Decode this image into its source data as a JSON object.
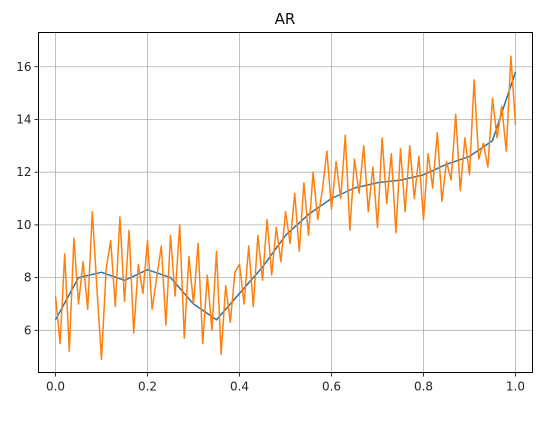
{
  "chart_data": {
    "type": "line",
    "title": "AR",
    "xlabel": "",
    "ylabel": "",
    "xlim": [
      -0.037,
      1.037
    ],
    "ylim": [
      4.4,
      17.3
    ],
    "xticks": [
      0.0,
      0.2,
      0.4,
      0.6,
      0.8,
      1.0
    ],
    "xtick_labels": [
      "0.0",
      "0.2",
      "0.4",
      "0.6",
      "0.8",
      "1.0"
    ],
    "yticks": [
      6,
      8,
      10,
      12,
      14,
      16
    ],
    "ytick_labels": [
      "6",
      "8",
      "10",
      "12",
      "14",
      "16"
    ],
    "grid": true,
    "legend": "none",
    "series": [
      {
        "color": "#1f77b4",
        "x": [
          0.0,
          0.05,
          0.1,
          0.15,
          0.2,
          0.25,
          0.3,
          0.35,
          0.4,
          0.45,
          0.5,
          0.55,
          0.6,
          0.65,
          0.7,
          0.75,
          0.8,
          0.85,
          0.9,
          0.95,
          1.0
        ],
        "y": [
          6.4,
          8.0,
          8.2,
          7.9,
          8.3,
          8.0,
          7.0,
          6.4,
          7.4,
          8.4,
          9.6,
          10.4,
          11.0,
          11.4,
          11.6,
          11.7,
          11.9,
          12.3,
          12.6,
          13.2,
          15.8
        ]
      },
      {
        "color": "#ff7f0e",
        "x": [
          0.0,
          0.01,
          0.02,
          0.03,
          0.04,
          0.05,
          0.06,
          0.07,
          0.08,
          0.09,
          0.1,
          0.11,
          0.12,
          0.13,
          0.14,
          0.15,
          0.16,
          0.17,
          0.18,
          0.19,
          0.2,
          0.21,
          0.22,
          0.23,
          0.24,
          0.25,
          0.26,
          0.27,
          0.28,
          0.29,
          0.3,
          0.31,
          0.32,
          0.33,
          0.34,
          0.35,
          0.36,
          0.37,
          0.38,
          0.39,
          0.4,
          0.41,
          0.42,
          0.43,
          0.44,
          0.45,
          0.46,
          0.47,
          0.48,
          0.49,
          0.5,
          0.51,
          0.52,
          0.53,
          0.54,
          0.55,
          0.56,
          0.57,
          0.58,
          0.59,
          0.6,
          0.61,
          0.62,
          0.63,
          0.64,
          0.65,
          0.66,
          0.67,
          0.68,
          0.69,
          0.7,
          0.71,
          0.72,
          0.73,
          0.74,
          0.75,
          0.76,
          0.77,
          0.78,
          0.79,
          0.8,
          0.81,
          0.82,
          0.83,
          0.84,
          0.85,
          0.86,
          0.87,
          0.88,
          0.89,
          0.9,
          0.91,
          0.92,
          0.93,
          0.94,
          0.95,
          0.96,
          0.97,
          0.98,
          0.99,
          1.0
        ],
        "y": [
          7.3,
          5.5,
          8.9,
          5.2,
          9.5,
          7.0,
          8.6,
          6.8,
          10.5,
          7.6,
          4.9,
          8.3,
          9.4,
          6.9,
          10.3,
          7.1,
          9.8,
          5.9,
          8.5,
          7.4,
          9.4,
          6.8,
          8.0,
          9.2,
          6.2,
          9.6,
          7.3,
          10.0,
          5.7,
          8.8,
          7.0,
          9.3,
          5.5,
          8.1,
          6.0,
          9.0,
          5.1,
          7.7,
          6.3,
          8.2,
          8.5,
          7.0,
          9.2,
          6.9,
          9.6,
          7.9,
          10.2,
          8.1,
          9.9,
          8.6,
          10.5,
          9.3,
          11.2,
          9.0,
          11.6,
          9.6,
          12.0,
          10.2,
          11.3,
          12.8,
          10.6,
          12.4,
          11.0,
          13.4,
          9.8,
          12.5,
          11.2,
          13.0,
          10.5,
          12.2,
          9.9,
          13.3,
          10.8,
          12.7,
          9.7,
          12.9,
          10.5,
          13.0,
          11.0,
          12.6,
          10.2,
          12.7,
          11.4,
          13.5,
          10.9,
          12.4,
          11.7,
          14.2,
          11.3,
          13.3,
          11.9,
          15.5,
          12.5,
          13.1,
          12.2,
          14.8,
          13.3,
          14.5,
          12.8,
          16.4,
          13.8
        ]
      }
    ]
  }
}
